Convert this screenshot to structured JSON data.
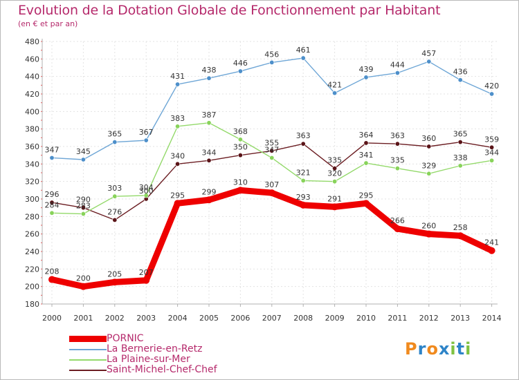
{
  "header": {
    "title": "Evolution de la Dotation Globale de Fonctionnement par Habitant",
    "subtitle": "(en € et par an)"
  },
  "colors": {
    "text": "#b5296b",
    "axis": "#b0b0b0",
    "grid": "#e3e3e3",
    "tick_label": "#333333"
  },
  "chart_data": {
    "type": "line",
    "title": "Evolution de la Dotation Globale de Fonctionnement par Habitant",
    "subtitle": "(en € et par an)",
    "xlabel": "",
    "ylabel": "",
    "ylim": [
      180,
      480
    ],
    "yticks": [
      180,
      200,
      220,
      240,
      260,
      280,
      300,
      320,
      340,
      360,
      380,
      400,
      420,
      440,
      460,
      480
    ],
    "grid": true,
    "legend_position": "bottom-left",
    "categories": [
      "2000",
      "2001",
      "2002",
      "2003",
      "2004",
      "2005",
      "2006",
      "2007",
      "2008",
      "2009",
      "2010",
      "2011",
      "2012",
      "2013",
      "2014"
    ],
    "series": [
      {
        "name": "Saint-Michel-Chef-Chef",
        "key": "saint-michel",
        "color": "#6b1d22",
        "dot_color": "#5a1418",
        "values": [
          296,
          290,
          276,
          300,
          340,
          344,
          350,
          355,
          363,
          335,
          364,
          363,
          360,
          365,
          359
        ],
        "labels": [
          "296",
          "290",
          "276",
          "300",
          "340",
          "344",
          "350",
          "355",
          "363",
          "335",
          "364",
          "363",
          "360",
          "365",
          "359"
        ]
      },
      {
        "name": "La Plaine-sur-Mer",
        "key": "la-plaine",
        "color": "#93d96a",
        "dot_color": "#88d35a",
        "values": [
          284,
          283,
          303,
          304,
          383,
          387,
          368,
          347,
          321,
          320,
          341,
          335,
          329,
          338,
          344
        ],
        "labels": [
          "284",
          "283",
          "303",
          "304",
          "383",
          "387",
          "368",
          "347",
          "321",
          "320",
          "341",
          "335",
          "329",
          "338",
          "344"
        ]
      },
      {
        "name": "La Bernerie-en-Retz",
        "key": "la-bernerie",
        "color": "#6ea6d6",
        "dot_color": "#4d8fca",
        "values": [
          347,
          345,
          365,
          367,
          431,
          438,
          446,
          456,
          461,
          421,
          439,
          444,
          457,
          436,
          420
        ],
        "labels": [
          "347",
          "345",
          "365",
          "367",
          "431",
          "438",
          "446",
          "456",
          "461",
          "421",
          "439",
          "444",
          "457",
          "436",
          "420"
        ]
      },
      {
        "name": "PORNIC",
        "key": "pornic",
        "color": "#ee0000",
        "dot_color": "#ee0000",
        "values": [
          208,
          200,
          205,
          207,
          295,
          299,
          310,
          307,
          293,
          291,
          295,
          266,
          260,
          258,
          241
        ],
        "labels": [
          "208",
          "200",
          "205",
          "207",
          "295",
          "299",
          "310",
          "307",
          "293",
          "291",
          "295",
          "266",
          "260",
          "258",
          "241"
        ]
      }
    ]
  },
  "legend": [
    {
      "label": "PORNIC",
      "color": "#ee0000",
      "thick": true
    },
    {
      "label": "La Bernerie-en-Retz",
      "color": "#6ea6d6",
      "thick": false
    },
    {
      "label": "La Plaine-sur-Mer",
      "color": "#93d96a",
      "thick": false
    },
    {
      "label": "Saint-Michel-Chef-Chef",
      "color": "#6b1d22",
      "thick": false
    }
  ],
  "logo": {
    "letters": [
      {
        "char": "P",
        "color": "#f08a1e"
      },
      {
        "char": "r",
        "color": "#2e84c8"
      },
      {
        "char": "o",
        "color": "#f08a1e"
      },
      {
        "char": "x",
        "color": "#2e84c8"
      },
      {
        "char": "i",
        "color": "#7fc241"
      },
      {
        "char": "t",
        "color": "#2e84c8"
      },
      {
        "char": "i",
        "color": "#7fc241"
      }
    ]
  }
}
